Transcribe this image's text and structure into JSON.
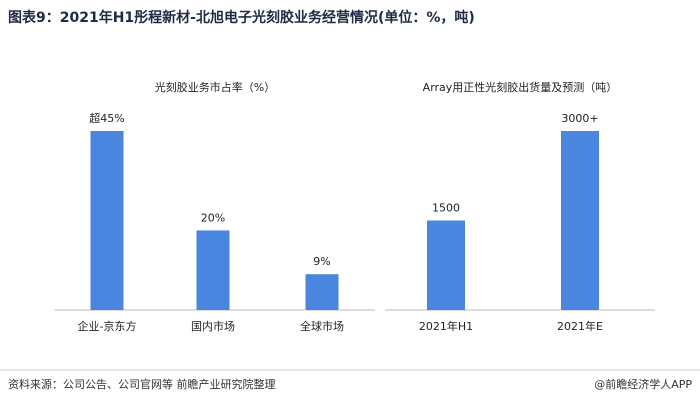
{
  "title": "图表9：2021年H1彤程新材-北旭电子光刻胶业务经营情况(单位：%，吨)",
  "source": "资料来源：公司公告、公司官网等 前瞻产业研究院整理",
  "brand": "@前瞻经济学人APP",
  "chart_data": [
    {
      "type": "bar",
      "title": "光刻胶业务市占率（%）",
      "categories": [
        "企业-京东方",
        "国内市场",
        "全球市场"
      ],
      "values": [
        45,
        20,
        9
      ],
      "value_labels": [
        "超45%",
        "20%",
        "9%"
      ],
      "color": "#4a86e0"
    },
    {
      "type": "bar",
      "title": "Array用正性光刻胶出货量及预测（吨）",
      "categories": [
        "2021年H1",
        "2021年E"
      ],
      "values": [
        1500,
        3000
      ],
      "value_labels": [
        "1500",
        "3000+"
      ],
      "color": "#4a86e0"
    }
  ]
}
